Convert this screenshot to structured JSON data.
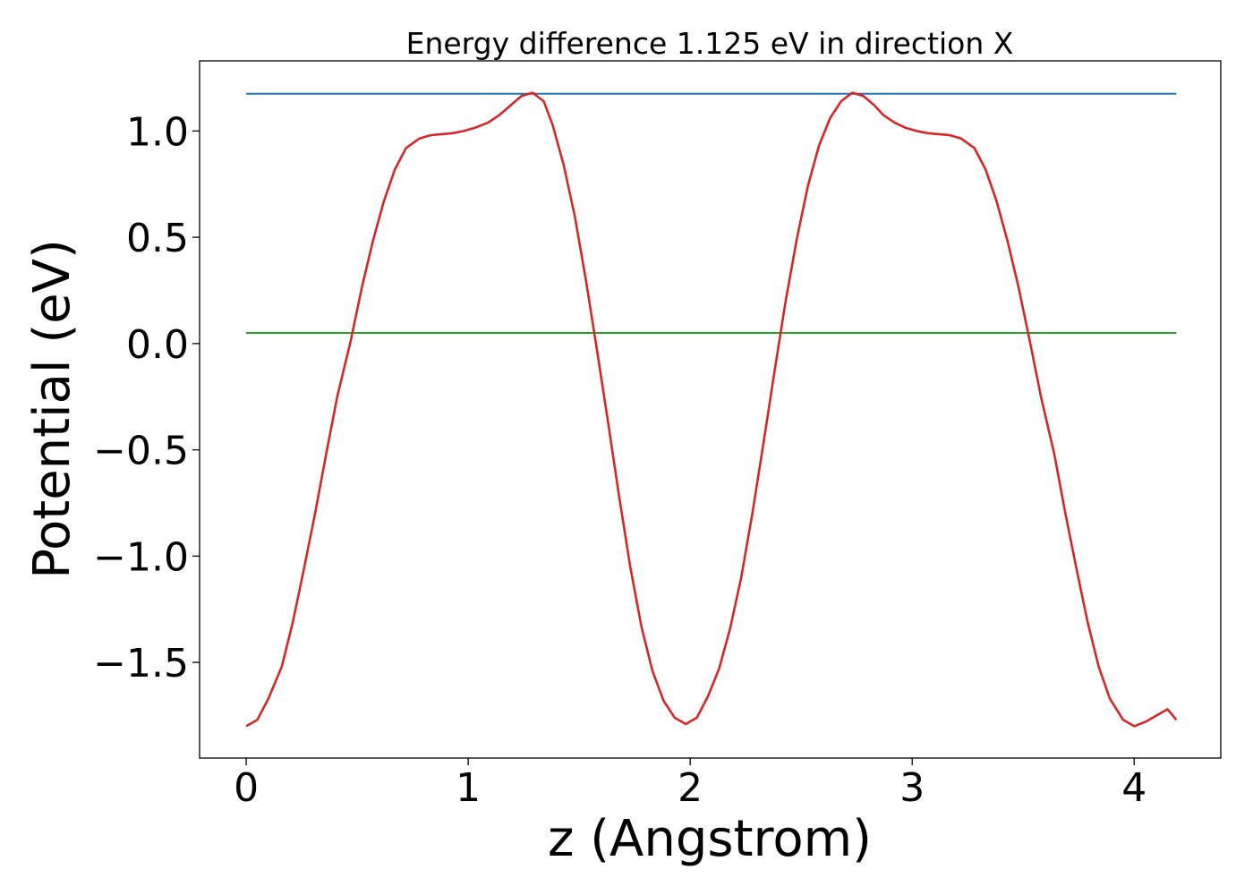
{
  "chart_data": {
    "type": "line",
    "title": "Energy difference 1.125 eV in direction X",
    "xlabel": "z (Angstrom)",
    "ylabel": "Potential (eV)",
    "xlim": [
      -0.21,
      4.39
    ],
    "ylim": [
      -1.95,
      1.33
    ],
    "xticks": [
      0,
      1,
      2,
      3,
      4
    ],
    "xtick_labels": [
      "0",
      "1",
      "2",
      "3",
      "4"
    ],
    "yticks": [
      -1.5,
      -1.0,
      -0.5,
      0.0,
      0.5,
      1.0
    ],
    "ytick_labels": [
      "−1.5",
      "−1.0",
      "−0.5",
      "0.0",
      "0.5",
      "1.0"
    ],
    "grid": false,
    "series": [
      {
        "color": "#1f77b4",
        "x": [
          0,
          4.19
        ],
        "y": [
          1.175,
          1.175
        ]
      },
      {
        "color": "#2ca02c",
        "x": [
          0,
          4.19
        ],
        "y": [
          0.05,
          0.05
        ]
      },
      {
        "color": "#d62728",
        "x": [
          0.0,
          0.05,
          0.1,
          0.16,
          0.21,
          0.26,
          0.31,
          0.36,
          0.41,
          0.47,
          0.52,
          0.57,
          0.62,
          0.67,
          0.72,
          0.78,
          0.83,
          0.88,
          0.93,
          0.98,
          1.03,
          1.09,
          1.14,
          1.19,
          1.24,
          1.29,
          1.34,
          1.38,
          1.43,
          1.48,
          1.53,
          1.58,
          1.63,
          1.68,
          1.73,
          1.78,
          1.83,
          1.88,
          1.93,
          1.98,
          2.03,
          2.08,
          2.13,
          2.18,
          2.23,
          2.28,
          2.33,
          2.38,
          2.43,
          2.48,
          2.53,
          2.58,
          2.63,
          2.68,
          2.73,
          2.78,
          2.83,
          2.87,
          2.92,
          2.97,
          3.02,
          3.07,
          3.12,
          3.17,
          3.22,
          3.28,
          3.33,
          3.38,
          3.43,
          3.48,
          3.53,
          3.58,
          3.64,
          3.69,
          3.74,
          3.79,
          3.84,
          3.89,
          3.95,
          4.0,
          4.05,
          4.1,
          4.15,
          4.19
        ],
        "y": [
          -1.8,
          -1.77,
          -1.67,
          -1.52,
          -1.31,
          -1.06,
          -0.8,
          -0.52,
          -0.25,
          0.01,
          0.26,
          0.48,
          0.67,
          0.82,
          0.92,
          0.965,
          0.98,
          0.985,
          0.99,
          1.0,
          1.015,
          1.04,
          1.075,
          1.12,
          1.165,
          1.18,
          1.14,
          1.03,
          0.84,
          0.6,
          0.3,
          -0.03,
          -0.37,
          -0.72,
          -1.05,
          -1.33,
          -1.54,
          -1.68,
          -1.76,
          -1.79,
          -1.76,
          -1.66,
          -1.53,
          -1.34,
          -1.1,
          -0.8,
          -0.47,
          -0.13,
          0.2,
          0.49,
          0.74,
          0.93,
          1.06,
          1.14,
          1.18,
          1.165,
          1.12,
          1.075,
          1.04,
          1.015,
          1.0,
          0.99,
          0.985,
          0.98,
          0.965,
          0.92,
          0.82,
          0.67,
          0.48,
          0.26,
          0.01,
          -0.25,
          -0.52,
          -0.8,
          -1.06,
          -1.31,
          -1.52,
          -1.67,
          -1.77,
          -1.8,
          -1.78,
          -1.75,
          -1.72,
          -1.77
        ]
      }
    ]
  }
}
